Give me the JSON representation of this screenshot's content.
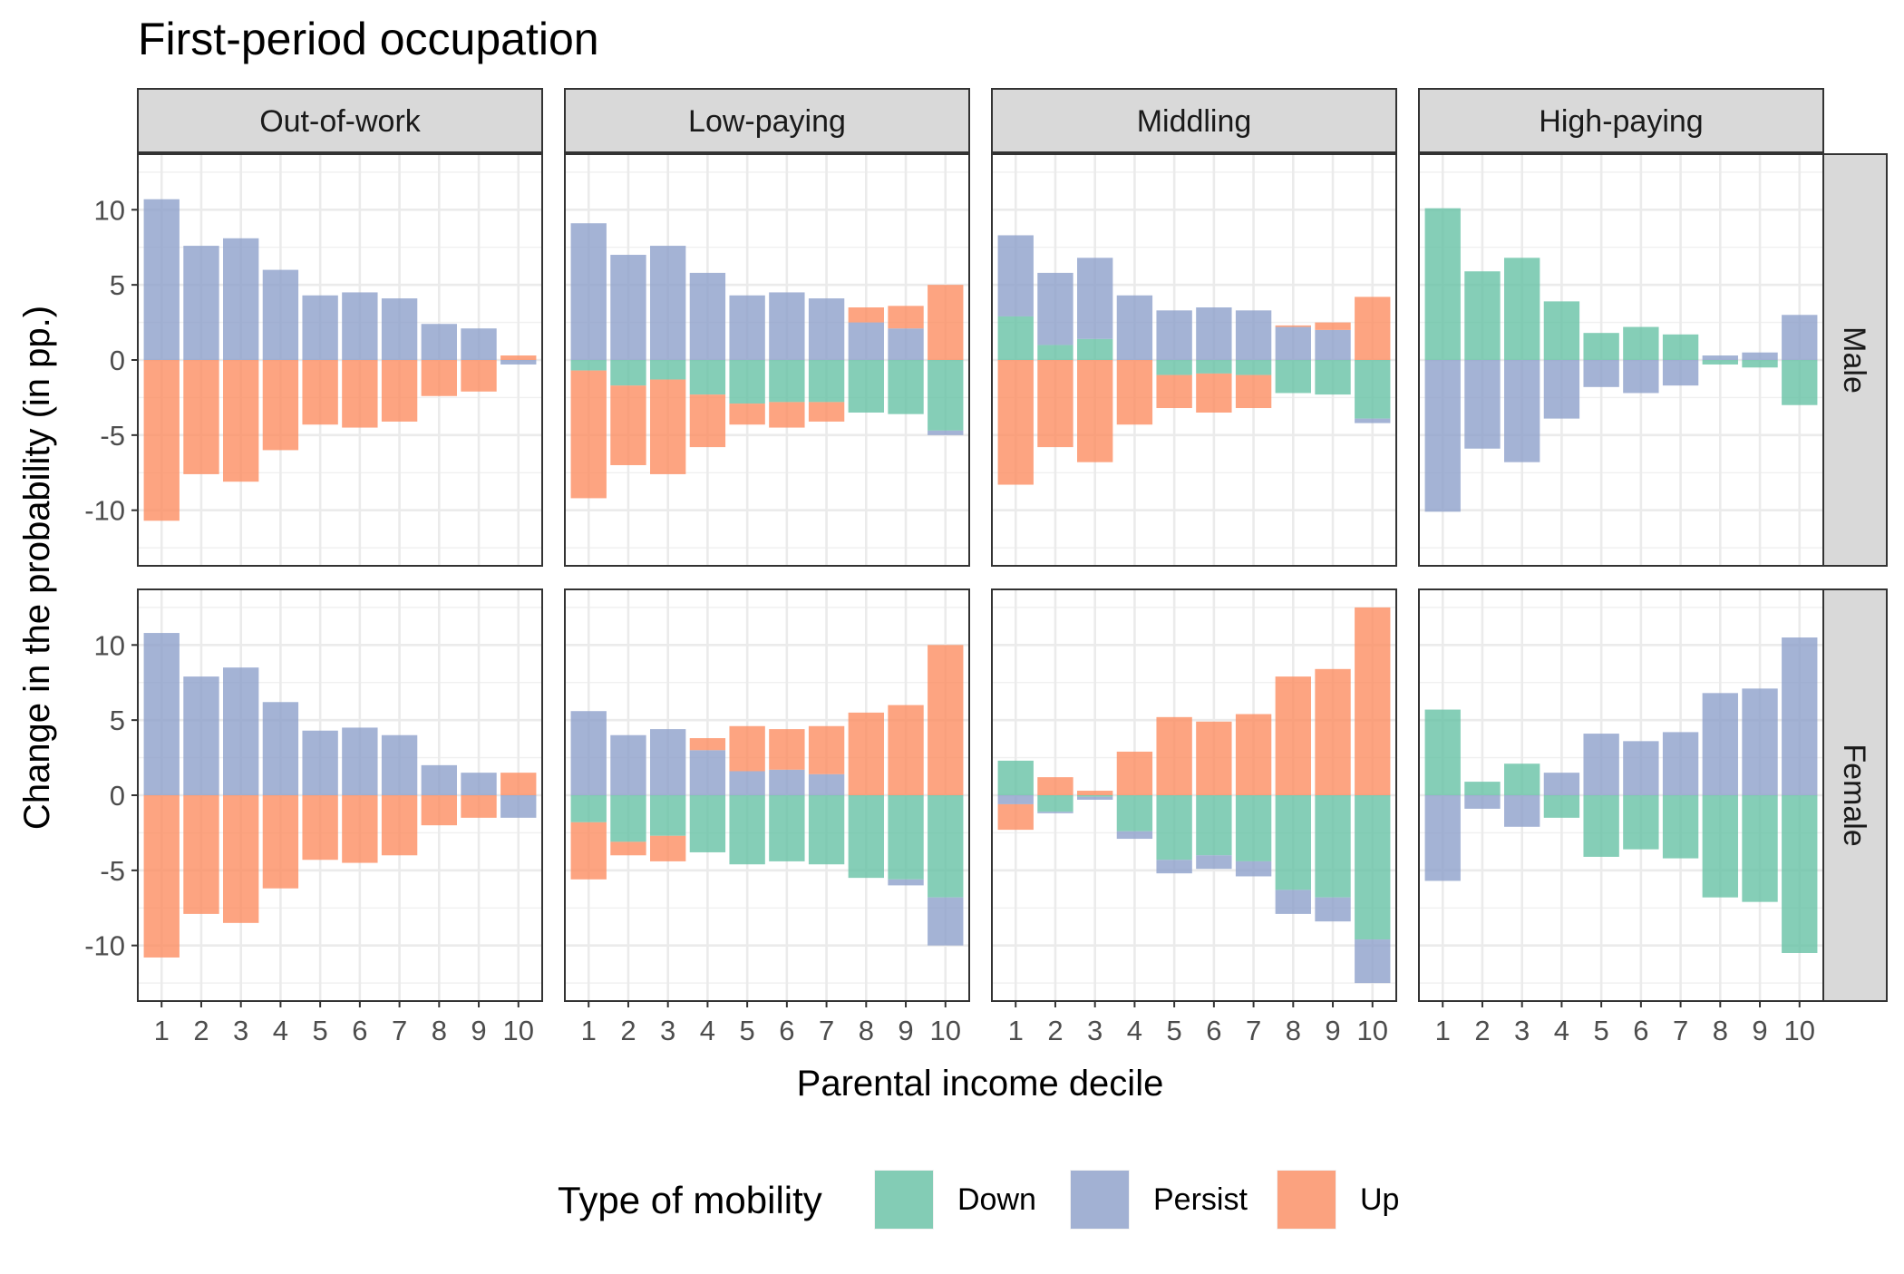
{
  "chart_data": {
    "type": "bar",
    "title": "First-period occupation",
    "xlabel": "Parental income decile",
    "ylabel": "Change in the probability (in pp.)",
    "categories": [
      "1",
      "2",
      "3",
      "4",
      "5",
      "6",
      "7",
      "8",
      "9",
      "10"
    ],
    "ylim": [
      -13.7,
      13.7
    ],
    "yticks": [
      -10,
      -5,
      0,
      5,
      10
    ],
    "ytick_labels": [
      "-10",
      "-5",
      "0",
      "5",
      "10"
    ],
    "columns": [
      "Out-of-work",
      "Low-paying",
      "Middling",
      "High-paying"
    ],
    "rows": [
      "Male",
      "Female"
    ],
    "legend": {
      "title": "Type of mobility",
      "position": "bottom",
      "entries": [
        {
          "name": "Down",
          "color": "#66C2A5"
        },
        {
          "name": "Persist",
          "color": "#8DA0CB"
        },
        {
          "name": "Up",
          "color": "#FC8D62"
        }
      ]
    },
    "grid": true,
    "panels": [
      {
        "column": "Out-of-work",
        "row": "Male",
        "series": [
          {
            "name": "Down",
            "values": [
              0,
              0,
              0,
              0,
              0,
              0,
              0,
              0,
              0,
              0
            ]
          },
          {
            "name": "Persist",
            "values": [
              10.7,
              7.6,
              8.1,
              6.0,
              4.3,
              4.5,
              4.1,
              2.4,
              2.1,
              -0.3
            ]
          },
          {
            "name": "Up",
            "values": [
              -10.7,
              -7.6,
              -8.1,
              -6.0,
              -4.3,
              -4.5,
              -4.1,
              -2.4,
              -2.1,
              0.3
            ]
          }
        ]
      },
      {
        "column": "Low-paying",
        "row": "Male",
        "series": [
          {
            "name": "Down",
            "values": [
              -0.7,
              -1.7,
              -1.3,
              -2.3,
              -2.9,
              -2.8,
              -2.8,
              -3.5,
              -3.6,
              -4.7
            ]
          },
          {
            "name": "Persist",
            "values": [
              9.1,
              7.0,
              7.6,
              5.8,
              4.3,
              4.5,
              4.1,
              2.5,
              2.1,
              -0.3
            ]
          },
          {
            "name": "Up",
            "values": [
              -8.5,
              -5.3,
              -6.3,
              -3.5,
              -1.4,
              -1.7,
              -1.3,
              1.0,
              1.5,
              5.0
            ]
          }
        ]
      },
      {
        "column": "Middling",
        "row": "Male",
        "series": [
          {
            "name": "Down",
            "values": [
              2.9,
              1.0,
              1.4,
              0,
              -1.0,
              -0.9,
              -1.0,
              -2.2,
              -2.3,
              -3.9
            ]
          },
          {
            "name": "Persist",
            "values": [
              5.4,
              4.8,
              5.4,
              4.3,
              3.3,
              3.5,
              3.3,
              2.2,
              2.0,
              -0.3
            ]
          },
          {
            "name": "Up",
            "values": [
              -8.3,
              -5.8,
              -6.8,
              -4.3,
              -2.2,
              -2.6,
              -2.2,
              0.1,
              0.5,
              4.2
            ]
          }
        ]
      },
      {
        "column": "High-paying",
        "row": "Male",
        "series": [
          {
            "name": "Down",
            "values": [
              10.1,
              5.9,
              6.8,
              3.9,
              1.8,
              2.2,
              1.7,
              -0.3,
              -0.5,
              -3.0
            ]
          },
          {
            "name": "Persist",
            "values": [
              -10.1,
              -5.9,
              -6.8,
              -3.9,
              -1.8,
              -2.2,
              -1.7,
              0.3,
              0.5,
              3.0
            ]
          },
          {
            "name": "Up",
            "values": [
              0,
              0,
              0,
              0,
              0,
              0,
              0,
              0,
              0,
              0
            ]
          }
        ]
      },
      {
        "column": "Out-of-work",
        "row": "Female",
        "series": [
          {
            "name": "Down",
            "values": [
              0,
              0,
              0,
              0,
              0,
              0,
              0,
              0,
              0,
              0
            ]
          },
          {
            "name": "Persist",
            "values": [
              10.8,
              7.9,
              8.5,
              6.2,
              4.3,
              4.5,
              4.0,
              2.0,
              1.5,
              -1.5
            ]
          },
          {
            "name": "Up",
            "values": [
              -10.8,
              -7.9,
              -8.5,
              -6.2,
              -4.3,
              -4.5,
              -4.0,
              -2.0,
              -1.5,
              1.5
            ]
          }
        ]
      },
      {
        "column": "Low-paying",
        "row": "Female",
        "series": [
          {
            "name": "Down",
            "values": [
              -1.8,
              -3.1,
              -2.7,
              -3.8,
              -4.6,
              -4.4,
              -4.6,
              -5.5,
              -5.6,
              -6.8
            ]
          },
          {
            "name": "Persist",
            "values": [
              5.6,
              4.0,
              4.4,
              3.0,
              1.6,
              1.7,
              1.4,
              0,
              -0.4,
              -3.2
            ]
          },
          {
            "name": "Up",
            "values": [
              -3.8,
              -0.9,
              -1.7,
              0.8,
              3.0,
              2.7,
              3.2,
              5.5,
              6.0,
              10.0
            ]
          }
        ]
      },
      {
        "column": "Middling",
        "row": "Female",
        "series": [
          {
            "name": "Down",
            "values": [
              2.3,
              -1.1,
              -0.1,
              -2.4,
              -4.3,
              -4.0,
              -4.4,
              -6.3,
              -6.8,
              -9.6
            ]
          },
          {
            "name": "Persist",
            "values": [
              -0.6,
              -0.1,
              -0.2,
              -0.5,
              -0.9,
              -0.9,
              -1.0,
              -1.6,
              -1.6,
              -2.9
            ]
          },
          {
            "name": "Up",
            "values": [
              -1.7,
              1.2,
              0.3,
              2.9,
              5.2,
              4.9,
              5.4,
              7.9,
              8.4,
              12.5
            ]
          }
        ]
      },
      {
        "column": "High-paying",
        "row": "Female",
        "series": [
          {
            "name": "Down",
            "values": [
              5.7,
              0.9,
              2.1,
              -1.5,
              -4.1,
              -3.6,
              -4.2,
              -6.8,
              -7.1,
              -10.5
            ]
          },
          {
            "name": "Persist",
            "values": [
              -5.7,
              -0.9,
              -2.1,
              1.5,
              4.1,
              3.6,
              4.2,
              6.8,
              7.1,
              10.5
            ]
          },
          {
            "name": "Up",
            "values": [
              0,
              0,
              0,
              0,
              0,
              0,
              0,
              0,
              0,
              0
            ]
          }
        ]
      }
    ]
  }
}
